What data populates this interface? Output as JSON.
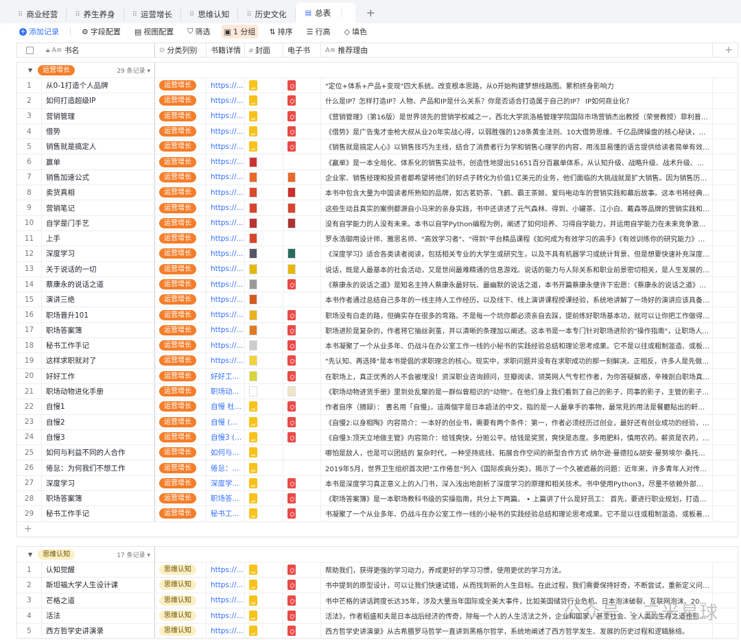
{
  "tabs": [
    {
      "label": "商业经营"
    },
    {
      "label": "养生养身"
    },
    {
      "label": "运营增长"
    },
    {
      "label": "思维认知"
    },
    {
      "label": "历史文化"
    },
    {
      "label": "总表",
      "active": true
    }
  ],
  "toolbar": {
    "add": "添加记录",
    "fields": "字段配置",
    "view": "视图配置",
    "filter": "筛选",
    "group": "1 分组",
    "sort": "排序",
    "row_height": "行高",
    "fill": "填色"
  },
  "columns": {
    "name": "书名",
    "category": "分类列别",
    "detail": "书籍详情",
    "cover": "封面",
    "ebook": "电子书",
    "reason": "推荐理由"
  },
  "colors": {
    "accent": "#3370ff",
    "tag_growth": "#f47e2a",
    "tag_thinking": "#fbefc5",
    "pdf": "#e94a47",
    "image": "#f8c21b"
  },
  "watermark": "公众号 · 三米星球",
  "groups": [
    {
      "tag": "运营增长",
      "style": "or",
      "count": "29 条记录",
      "rows": [
        [
          "从0-1打造个人品牌",
          "https://...",
          "img",
          "pdf",
          "\"定位+体系+产品+变现\"四大系统。改变根本思路，从0开始构建梦想线路图。累积终身影响力"
        ],
        [
          "如何打造超级IP",
          "https://...",
          "img",
          "pdf",
          "什么是IP？怎样打造IP？人物、产品和IP是什么关系？你是否适合打造属于自己的IP？ IP如何商业化？"
        ],
        [
          "营销管理",
          "https://...",
          "img",
          "pdf",
          "《营销管理》（第16版）是世界领先的营销学权威之一，西北大学凯洛格管理学院国际市场营销杰出教授（荣誉教授）菲利普·..."
        ],
        [
          "借势",
          "https://...",
          "img",
          "pdf",
          "《借势》是广告鬼才金枪大叔从业20年实战心得，以弱胜强的128条黄金法则、10大借势思维、千亿品牌操盘的核心秘诀，首次..."
        ],
        [
          "销售就是搞定人",
          "https://...",
          "img",
          "pdf",
          "《销售就是搞定人心》以销售技巧为主线，结合了消费者行为学和销售心理学的内容，用浅显易懂的语言提供给读者简单有效的..."
        ],
        [
          "赢单",
          "https://...",
          "thumb:#c33",
          "",
          "《赢单》是一本全局化、体系化的销售实战书，创造性地提出S1651百分百赢单体系，从认知升级、战略升级、战术升级、沟通..."
        ],
        [
          "销售加速公式",
          "https://...",
          "thumb:#e8692a",
          "thumb:#e8692a",
          "企业家、销售经理和投资者都希望将他们的好点子转化为价值1亿美元的业务，他们面临的大挑战就是扩大销售。因为销售历来..."
        ],
        [
          "卖货真相",
          "https://...",
          "thumb:#d94a2c",
          "thumb:#c9302c",
          "本书中包含大量为中国读者所熟知的品牌，如古茗奶茶、飞鹤、霸王茶姬、爱玛电动车的营销实践和幕后故事。这本书将经典理..."
        ],
        [
          "营销笔记",
          "https://...",
          "thumb:#d8452f",
          "thumb:#d8452f",
          "这些生动且真实的案例都源自小马宋的亲身实践，书中还讲述了元气森林、得到、小罐茶、江小白、戴森等品牌的营销实践和幕..."
        ],
        [
          "自学是门手艺",
          "https://...",
          "thumb:#b33",
          "thumb:#a33",
          "没有自学能力的人没有未来。本书以自学Python编程为例，阐述了如何培养、习得自学能力，并运用自学能力在未来竞争激烈的..."
        ],
        [
          "上手",
          "https://...",
          "thumb:#d5462a",
          "",
          "罗永浩御用设计师、雅思名师、\"高效学习者\"、\"得到\"平台精品课程《如何成为有效学习的高手》《有效训练你的研究能力》主..."
        ],
        [
          "深度学习",
          "https://...",
          "thumb:#556",
          "thumb:#2a6b5c",
          "《深度学习》适合各类读者阅读，包括相关专业的大学生或研究生，以及不具有机器学习或统计背景、但是想要快速补充深度学..."
        ],
        [
          "关于说话的一切",
          "https://...",
          "thumb:#e6b800",
          "thumb:#e6b800",
          "说话，既是人最基本的社会活动，又是世间最难精通的信息游戏。说话的能力与人际关系和职业前景密切相关，是人生发展的关..."
        ],
        [
          "蔡康永的说话之道",
          "https://...",
          "thumb:#999",
          "pdf",
          "《蔡康永的说话之道》是知名主持人蔡康永最好玩、最幽默的说话之道，本书开篇蔡康永便许下宏愿：《蔡康永的说话之道》会..."
        ],
        [
          "演讲三绝",
          "https://...",
          "thumb:#d35a20",
          "",
          "本书作者通过总结自己多年的一线主持人工作经历，以及线下、线上演讲课程授课经验，系统地讲解了一场好的演讲应该具备哪..."
        ],
        [
          "职场晋升101",
          "https://...",
          "thumb:#e8b21a",
          "pdf",
          "职场没有白走的路，但确实存在很多的弯路。不是每一个坑你都必须亲自去踩，提前练好职场基本功，就可以让你把工作做得更..."
        ],
        [
          "职场答案簿",
          "https://...",
          "thumb:#e07a20",
          "pdf",
          "职场进阶是复杂的，作者将它抽丝剥茧，并以清晰的条理加以阐述。这本书是一本专门针对职场进阶的\"操作指南\"，让职场人可..."
        ],
        [
          "秘书工作手记",
          "https://...",
          "thumb:#ccc",
          "pdf",
          "本书凝聚了一个从业多年、仍战斗在办公室工作一线的小秘书的实践经验总结和理论思考成果。它不是以往或粗制滥造、或板着面..."
        ],
        [
          "这样求职就对了",
          "https://...",
          "thumb:#f0d33a",
          "pdf",
          "\"先认知、再选择\"是本书提倡的求职理念的核心。现实中，求职问题并没有在求职成功的那一刻解决。正相反，许多人是先做了..."
        ],
        [
          "好好工作",
          "好好工...",
          "thumb:#d8d43a",
          "pdf",
          "在职场上，真正优秀的人不会被埋没！资深职业咨询顾问，豆瓣阅读、领英网人气专栏作者，为你答疑解惑，辛辣剖白职场真相..."
        ],
        [
          "职场动物进化手册",
          "职场动...",
          "thumb:#fff",
          "thumb:#efe3c8",
          "《职场动物进货手册》里到处乱窜的是一群似曾相识的\"动物\"。在他们身上我们看到了自己的影子，同事的影子，主管的影子，..."
        ],
        [
          "自慢1",
          "自慢 杜...",
          "img",
          "pdf",
          "作者自序（摘録）： 書名用「自慢」，這兩個字是日本語法的中文，指的是一人最拿手的事物，最常見的用法是餐廳貼出的軒串..."
        ],
        [
          "自慢2",
          "自慢 (豆...",
          "img",
          "pdf",
          "《自慢2:以身相陶》内容简介：一本好的创业书，需要有两个条件：第一，作者必须经历过创业，最好还有创业成功的经验，否..."
        ],
        [
          "自慢3",
          "自慢3 (...",
          "img",
          "pdf",
          "《自慢3:顶天立地做主管》内容简介：给钱爽快，分赃公平。给钱是奖赏，爽快是态度。多用肥料，慎用农药。薪资是农药，而..."
        ],
        [
          "如何与利益不同的人合作",
          "如何与...",
          "img",
          "",
          "哪怕是敌人，也是可以团结的 复杂时代，一种坚持底线、拓展合作空间的新型合作方式 纳尔逊·曼德拉&胡安·曼努埃尔·桑托斯 ..."
        ],
        [
          "倦怠：为何我们不想工作",
          "倦怠：...",
          "img",
          "",
          "2019年5月，世界卫生组织首次把\"工作倦怠\"列入《国际疾病分类》，揭示了一个久被遮蔽的问题：近年来，许多青年人对传统..."
        ],
        [
          "深度学习",
          "深度学...",
          "img",
          "pdf",
          "本书是深度学习真正意义上的入门书，深入浅出地剖析了深度学习的原理和相关技术。书中使用Python3，尽量不依赖外部库或..."
        ],
        [
          "职场答案簿",
          "职场答...",
          "img",
          "pdf",
          "《职场答案簿》是一本职场教科书级的实操指南，共分上下两篇。 • 上篇讲了什么是好员工： 首先，要进行职业规划，打造个..."
        ],
        [
          "秘书工作手记",
          "秘书工...",
          "img",
          "pdf",
          "书凝聚了一个从业多年、仍战斗在办公室工作一线的小秘书的实践经验总结和理论思考成果。它不是以往或粗制滥造、或板着面..."
        ]
      ]
    },
    {
      "tag": "思维认知",
      "style": "be",
      "count": "17 条记录",
      "rows": [
        [
          "认知觉醒",
          "https://...",
          "img",
          "pdf",
          "帮助我们，获得更强的学习动力，养成更好的学习习惯，使用更优的学习方法。"
        ],
        [
          "斯坦福大学人生设计课",
          "https://...",
          "img",
          "pdf",
          "书中提到的原型设计，可以让我们快速试错，从而找到新的人生目标。在此过程，我们需要保持好奇，不断尝试，重新定义问题..."
        ],
        [
          "芒格之道",
          "https://...",
          "img",
          "pdf",
          "书中芒格的讲话跨度长达35年，涉及大量当年国际或全美大事件，比如美国储贷行业危机、日本泡沫破裂、互联网泡沫、2008年..."
        ],
        [
          "活法",
          "https://...",
          "img",
          "pdf",
          "活法》，作者稻盛和夫是日本战后经济的传奇，除每一个人的人生活法之外，企业和国家，甚至社会、全人类的生存之道也包括..."
        ],
        [
          "西方哲学史讲演录",
          "https://...",
          "img",
          "pdf",
          "西方哲学史讲演录》从古希腊罗马哲学一直讲到黑格尔哲学，系统地阐述了西方哲学发生、发展的历史过程和逻辑脉络。"
        ]
      ]
    }
  ]
}
